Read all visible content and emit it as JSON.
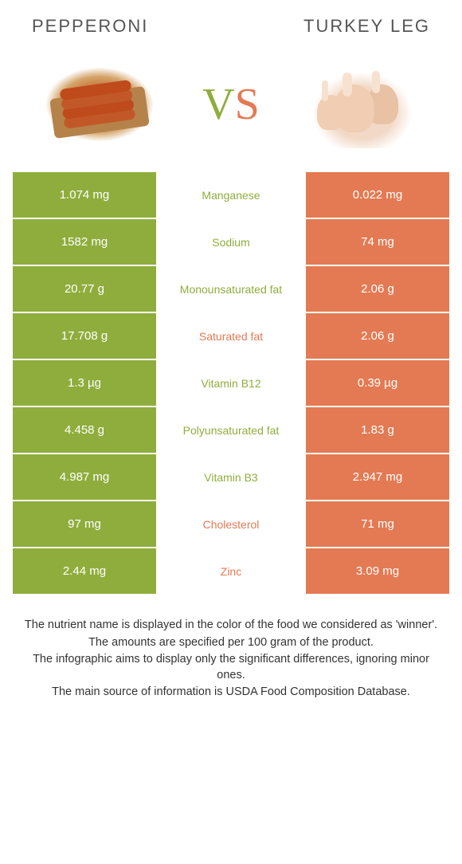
{
  "left_title": "PEPPERONI",
  "right_title": "TURKEY LEG",
  "vs_text": "VS",
  "colors": {
    "left_bg": "#8fad3c",
    "right_bg": "#e37a53",
    "left_text": "#8fad3c",
    "right_text": "#e37a53"
  },
  "rows": [
    {
      "left": "1.074 mg",
      "label": "Manganese",
      "right": "0.022 mg",
      "winner": "left"
    },
    {
      "left": "1582 mg",
      "label": "Sodium",
      "right": "74 mg",
      "winner": "left"
    },
    {
      "left": "20.77 g",
      "label": "Monounsaturated fat",
      "right": "2.06 g",
      "winner": "left"
    },
    {
      "left": "17.708 g",
      "label": "Saturated fat",
      "right": "2.06 g",
      "winner": "right"
    },
    {
      "left": "1.3 µg",
      "label": "Vitamin B12",
      "right": "0.39 µg",
      "winner": "left"
    },
    {
      "left": "4.458 g",
      "label": "Polyunsaturated fat",
      "right": "1.83 g",
      "winner": "left"
    },
    {
      "left": "4.987 mg",
      "label": "Vitamin B3",
      "right": "2.947 mg",
      "winner": "left"
    },
    {
      "left": "97 mg",
      "label": "Cholesterol",
      "right": "71 mg",
      "winner": "right"
    },
    {
      "left": "2.44 mg",
      "label": "Zinc",
      "right": "3.09 mg",
      "winner": "right"
    }
  ],
  "footer": [
    "The nutrient name is displayed in the color of the food we considered as 'winner'.",
    "The amounts are specified per 100 gram of the product.",
    "The infographic aims to display only the significant differences, ignoring minor ones.",
    "The main source of information is USDA Food Composition Database."
  ]
}
